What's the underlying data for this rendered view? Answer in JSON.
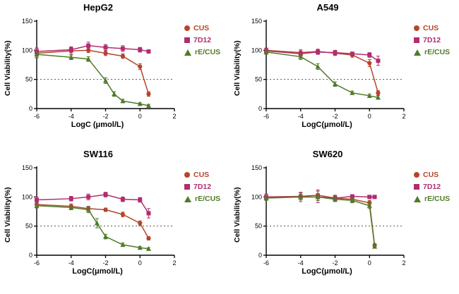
{
  "chart_data": [
    {
      "type": "line",
      "title": "HepG2",
      "xlabel": "LogC (μmol/L)",
      "ylabel": "Cell Viability(%)",
      "xlim": [
        -6,
        2
      ],
      "ylim": [
        0,
        150
      ],
      "xticks": [
        -6,
        -4,
        -2,
        0,
        2
      ],
      "yticks": [
        0,
        50,
        100,
        150
      ],
      "reference_line_y": 50,
      "series": [
        {
          "name": "CUS",
          "color": "#b5452c",
          "marker": "circle",
          "x": [
            -6,
            -4,
            -3,
            -2,
            -1,
            0,
            0.5
          ],
          "y": [
            95,
            99,
            100,
            95,
            90,
            72,
            25
          ],
          "err": [
            8,
            6,
            4,
            4,
            4,
            5,
            4
          ]
        },
        {
          "name": "7D12",
          "color": "#b02d70",
          "marker": "square",
          "x": [
            -6,
            -4,
            -3,
            -2,
            -1,
            0,
            0.5
          ],
          "y": [
            98,
            101,
            108,
            105,
            103,
            101,
            98
          ],
          "err": [
            6,
            5,
            6,
            5,
            5,
            4,
            3
          ]
        },
        {
          "name": "rE/CUS",
          "color": "#4f7b28",
          "marker": "triangle",
          "x": [
            -6,
            -4,
            -3,
            -2,
            -1.5,
            -1,
            0,
            0.5
          ],
          "y": [
            93,
            88,
            85,
            48,
            25,
            13,
            8,
            5
          ],
          "err": [
            5,
            4,
            4,
            5,
            4,
            3,
            2,
            2
          ]
        }
      ]
    },
    {
      "type": "line",
      "title": "A549",
      "xlabel": "LogC(μmol/L)",
      "ylabel": "Cell Viability(%)",
      "xlim": [
        -6,
        2
      ],
      "ylim": [
        0,
        150
      ],
      "xticks": [
        -6,
        -4,
        -2,
        0,
        2
      ],
      "yticks": [
        0,
        50,
        100,
        150
      ],
      "reference_line_y": 50,
      "series": [
        {
          "name": "CUS",
          "color": "#b5452c",
          "marker": "circle",
          "x": [
            -6,
            -4,
            -3,
            -2,
            -1,
            0,
            0.5
          ],
          "y": [
            100,
            96,
            98,
            95,
            92,
            78,
            27
          ],
          "err": [
            4,
            5,
            4,
            4,
            4,
            6,
            4
          ]
        },
        {
          "name": "7D12",
          "color": "#b02d70",
          "marker": "square",
          "x": [
            -6,
            -4,
            -3,
            -2,
            -1,
            0,
            0.5
          ],
          "y": [
            99,
            94,
            97,
            96,
            94,
            92,
            82
          ],
          "err": [
            4,
            5,
            4,
            4,
            3,
            4,
            8
          ]
        },
        {
          "name": "rE/CUS",
          "color": "#4f7b28",
          "marker": "triangle",
          "x": [
            -6,
            -4,
            -3,
            -2,
            -1,
            0,
            0.5
          ],
          "y": [
            97,
            89,
            72,
            42,
            27,
            22,
            19
          ],
          "err": [
            4,
            5,
            5,
            4,
            3,
            3,
            3
          ]
        }
      ]
    },
    {
      "type": "line",
      "title": "SW116",
      "xlabel": "LogC(μmol/L)",
      "ylabel": "Cell Viability(%)",
      "xlim": [
        -6,
        2
      ],
      "ylim": [
        0,
        150
      ],
      "xticks": [
        -6,
        -4,
        -2,
        0,
        2
      ],
      "yticks": [
        0,
        50,
        100,
        150
      ],
      "reference_line_y": 50,
      "series": [
        {
          "name": "CUS",
          "color": "#b5452c",
          "marker": "circle",
          "x": [
            -6,
            -4,
            -3,
            -2,
            -1,
            0,
            0.5
          ],
          "y": [
            87,
            84,
            80,
            78,
            70,
            55,
            29
          ],
          "err": [
            4,
            4,
            4,
            3,
            4,
            4,
            3
          ]
        },
        {
          "name": "7D12",
          "color": "#b02d70",
          "marker": "square",
          "x": [
            -6,
            -4,
            -3,
            -2,
            -1,
            0,
            0.5
          ],
          "y": [
            95,
            97,
            100,
            104,
            96,
            95,
            72
          ],
          "err": [
            5,
            4,
            5,
            4,
            4,
            4,
            8
          ]
        },
        {
          "name": "rE/CUS",
          "color": "#4f7b28",
          "marker": "triangle",
          "x": [
            -6,
            -4,
            -3,
            -2.5,
            -2,
            -1,
            0,
            0.5
          ],
          "y": [
            85,
            82,
            78,
            55,
            32,
            18,
            13,
            11
          ],
          "err": [
            4,
            4,
            5,
            8,
            4,
            3,
            2,
            2
          ]
        }
      ]
    },
    {
      "type": "line",
      "title": "SW620",
      "xlabel": "LogC(μmol/L)",
      "ylabel": "Cell Viability(%)",
      "xlim": [
        -6,
        2
      ],
      "ylim": [
        0,
        150
      ],
      "xticks": [
        -6,
        -4,
        -2,
        0,
        2
      ],
      "yticks": [
        0,
        50,
        100,
        150
      ],
      "reference_line_y": 50,
      "series": [
        {
          "name": "CUS",
          "color": "#b5452c",
          "marker": "circle",
          "x": [
            -6,
            -4,
            -3,
            -2,
            -1,
            0,
            0.3
          ],
          "y": [
            100,
            101,
            103,
            98,
            96,
            90,
            17
          ],
          "err": [
            5,
            6,
            9,
            5,
            4,
            4,
            3
          ]
        },
        {
          "name": "7D12",
          "color": "#b02d70",
          "marker": "square",
          "x": [
            -6,
            -4,
            -3,
            -2,
            -1,
            0,
            0.3
          ],
          "y": [
            100,
            100,
            100,
            98,
            101,
            100,
            100
          ],
          "err": [
            5,
            8,
            10,
            4,
            3,
            2,
            2
          ]
        },
        {
          "name": "rE/CUS",
          "color": "#4f7b28",
          "marker": "triangle",
          "x": [
            -6,
            -4,
            -3,
            -2,
            -1,
            0,
            0.3
          ],
          "y": [
            98,
            100,
            100,
            96,
            94,
            85,
            15
          ],
          "err": [
            4,
            5,
            6,
            4,
            4,
            5,
            3
          ]
        }
      ]
    }
  ]
}
